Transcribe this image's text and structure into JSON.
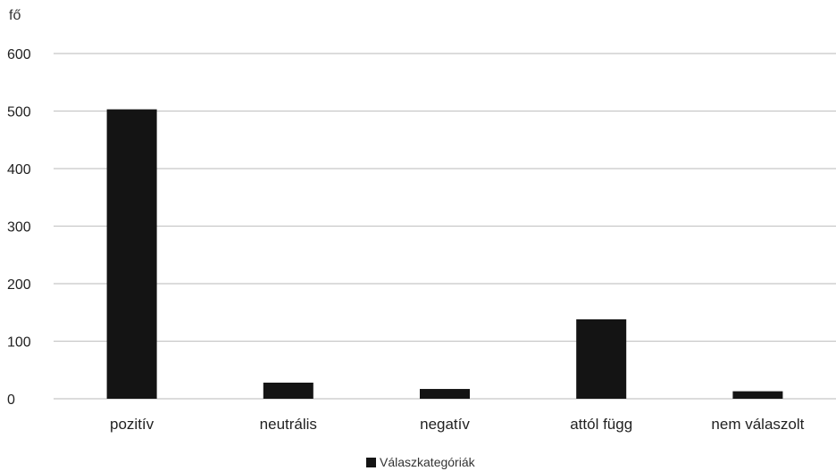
{
  "chart_data": {
    "type": "bar",
    "ylabel": "fő",
    "categories": [
      "pozitív",
      "neutrális",
      "negatív",
      "attól függ",
      "nem válaszolt"
    ],
    "series": [
      {
        "name": "Válaszkategóriák",
        "values": [
          503,
          28,
          17,
          138,
          13
        ],
        "color": "#141414"
      }
    ],
    "ylim": [
      0,
      600
    ],
    "yticks": [
      0,
      100,
      200,
      300,
      400,
      500,
      600
    ],
    "grid": true,
    "legend_position": "bottom-center"
  }
}
